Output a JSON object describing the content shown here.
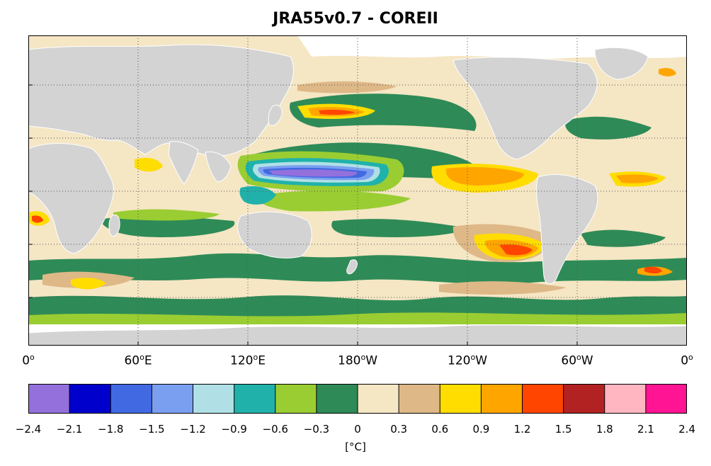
{
  "title": "JRA55v0.7 - COREII",
  "x_ticks": [
    {
      "deg": "0",
      "hemi": ""
    },
    {
      "deg": "60",
      "hemi": "E"
    },
    {
      "deg": "120",
      "hemi": "E"
    },
    {
      "deg": "180",
      "hemi": "W"
    },
    {
      "deg": "120",
      "hemi": "W"
    },
    {
      "deg": "60",
      "hemi": "W"
    },
    {
      "deg": "0",
      "hemi": ""
    }
  ],
  "colorbar": {
    "ticks": [
      "-2.4",
      "-2.1",
      "-1.8",
      "-1.5",
      "-1.2",
      "-0.9",
      "-0.6",
      "-0.3",
      "0",
      "0.3",
      "0.6",
      "0.9",
      "1.2",
      "1.5",
      "1.8",
      "2.1",
      "2.4"
    ],
    "colors": [
      "#9370db",
      "#0000cd",
      "#4169e1",
      "#7b9ff0",
      "#b0e0e6",
      "#20b2aa",
      "#9acd32",
      "#2e8b57",
      "#f5e6c4",
      "#deb887",
      "#ffdd00",
      "#ffa500",
      "#ff4500",
      "#b22222",
      "#ffb6c1",
      "#ff1493"
    ],
    "unit": "[°C]"
  },
  "colors": {
    "land": "#d3d3d3",
    "ocean_base": "#f5e6c4",
    "ice": "#ffffff"
  }
}
